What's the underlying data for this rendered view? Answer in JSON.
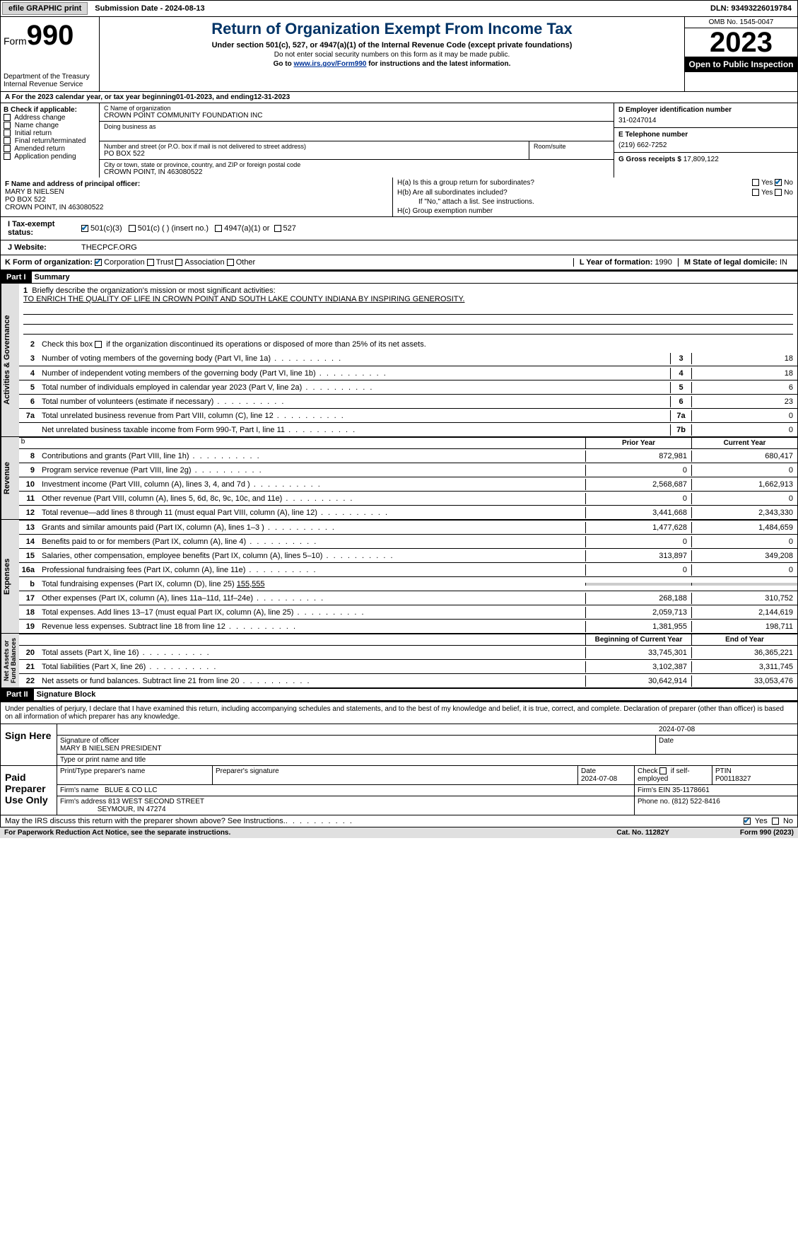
{
  "topbar": {
    "efile": "efile GRAPHIC print",
    "submission_label": "Submission Date - ",
    "submission_date": "2024-08-13",
    "dln_label": "DLN: ",
    "dln": "93493226019784"
  },
  "header": {
    "form_label": "Form",
    "form_no": "990",
    "dept": "Department of the Treasury\nInternal Revenue Service",
    "title": "Return of Organization Exempt From Income Tax",
    "subtitle": "Under section 501(c), 527, or 4947(a)(1) of the Internal Revenue Code (except private foundations)",
    "ssn_note": "Do not enter social security numbers on this form as it may be made public.",
    "goto_pre": "Go to ",
    "goto_link": "www.irs.gov/Form990",
    "goto_post": " for instructions and the latest information.",
    "omb": "OMB No. 1545-0047",
    "year": "2023",
    "open": "Open to Public Inspection"
  },
  "sectionA": {
    "text_pre": "A  For the 2023 calendar year, or tax year beginning ",
    "begin": "01-01-2023",
    "mid": "   , and ending ",
    "end": "12-31-2023"
  },
  "boxB": {
    "label": "B Check if applicable:",
    "items": [
      "Address change",
      "Name change",
      "Initial return",
      "Final return/terminated",
      "Amended return",
      "Application pending"
    ]
  },
  "boxC": {
    "name_label": "C Name of organization",
    "name": "CROWN POINT COMMUNITY FOUNDATION INC",
    "dba_label": "Doing business as",
    "dba": "",
    "street_label": "Number and street (or P.O. box if mail is not delivered to street address)",
    "street": "PO BOX 522",
    "room_label": "Room/suite",
    "city_label": "City or town, state or province, country, and ZIP or foreign postal code",
    "city": "CROWN POINT, IN  463080522"
  },
  "boxD": {
    "label": "D Employer identification number",
    "value": "31-0247014"
  },
  "boxE": {
    "label": "E Telephone number",
    "value": "(219) 662-7252"
  },
  "boxG": {
    "label": "G Gross receipts $ ",
    "value": "17,809,122"
  },
  "boxF": {
    "label": "F  Name and address of principal officer:",
    "name": "MARY B NIELSEN",
    "line2": "PO BOX 522",
    "line3": "CROWN POINT, IN  463080522"
  },
  "boxH": {
    "a": "H(a)  Is this a group return for subordinates?",
    "a_yes": "Yes",
    "a_no": "No",
    "b": "H(b)  Are all subordinates included?",
    "b_note": "If \"No,\" attach a list. See instructions.",
    "c": "H(c)  Group exemption number"
  },
  "status": {
    "i_label": "I   Tax-exempt status:",
    "opt1": "501(c)(3)",
    "opt2": "501(c) (  ) (insert no.)",
    "opt3": "4947(a)(1) or",
    "opt4": "527"
  },
  "website": {
    "label": "J   Website:",
    "value": "THECPCF.ORG"
  },
  "boxK": {
    "label": "K Form of organization:",
    "opts": [
      "Corporation",
      "Trust",
      "Association",
      "Other"
    ]
  },
  "boxL": {
    "label": "L Year of formation: ",
    "value": "1990"
  },
  "boxM": {
    "label": "M State of legal domicile: ",
    "value": "IN"
  },
  "part1": {
    "tag": "Part I",
    "title": "Summary"
  },
  "side_labels": {
    "gov": "Activities & Governance",
    "rev": "Revenue",
    "exp": "Expenses",
    "net": "Net Assets or\nFund Balances"
  },
  "mission": {
    "num": "1",
    "label": "Briefly describe the organization's mission or most significant activities:",
    "text": "TO ENRICH THE QUALITY OF LIFE IN CROWN POINT AND SOUTH LAKE COUNTY INDIANA BY INSPIRING GENEROSITY."
  },
  "line2": {
    "num": "2",
    "desc": "Check this box      if the organization discontinued its operations or disposed of more than 25% of its net assets."
  },
  "gov_lines": [
    {
      "num": "3",
      "desc": "Number of voting members of the governing body (Part VI, line 1a)",
      "box": "3",
      "val": "18"
    },
    {
      "num": "4",
      "desc": "Number of independent voting members of the governing body (Part VI, line 1b)",
      "box": "4",
      "val": "18"
    },
    {
      "num": "5",
      "desc": "Total number of individuals employed in calendar year 2023 (Part V, line 2a)",
      "box": "5",
      "val": "6"
    },
    {
      "num": "6",
      "desc": "Total number of volunteers (estimate if necessary)",
      "box": "6",
      "val": "23"
    },
    {
      "num": "7a",
      "desc": "Total unrelated business revenue from Part VIII, column (C), line 12",
      "box": "7a",
      "val": "0"
    },
    {
      "num": "",
      "desc": "Net unrelated business taxable income from Form 990-T, Part I, line 11",
      "box": "7b",
      "val": "0"
    }
  ],
  "col_headers": {
    "prior": "Prior Year",
    "current": "Current Year",
    "begin": "Beginning of Current Year",
    "end": "End of Year"
  },
  "rev_lines": [
    {
      "num": "8",
      "desc": "Contributions and grants (Part VIII, line 1h)",
      "prior": "872,981",
      "curr": "680,417"
    },
    {
      "num": "9",
      "desc": "Program service revenue (Part VIII, line 2g)",
      "prior": "0",
      "curr": "0"
    },
    {
      "num": "10",
      "desc": "Investment income (Part VIII, column (A), lines 3, 4, and 7d )",
      "prior": "2,568,687",
      "curr": "1,662,913"
    },
    {
      "num": "11",
      "desc": "Other revenue (Part VIII, column (A), lines 5, 6d, 8c, 9c, 10c, and 11e)",
      "prior": "0",
      "curr": "0"
    },
    {
      "num": "12",
      "desc": "Total revenue—add lines 8 through 11 (must equal Part VIII, column (A), line 12)",
      "prior": "3,441,668",
      "curr": "2,343,330"
    }
  ],
  "exp_lines": [
    {
      "num": "13",
      "desc": "Grants and similar amounts paid (Part IX, column (A), lines 1–3 )",
      "prior": "1,477,628",
      "curr": "1,484,659"
    },
    {
      "num": "14",
      "desc": "Benefits paid to or for members (Part IX, column (A), line 4)",
      "prior": "0",
      "curr": "0"
    },
    {
      "num": "15",
      "desc": "Salaries, other compensation, employee benefits (Part IX, column (A), lines 5–10)",
      "prior": "313,897",
      "curr": "349,208"
    },
    {
      "num": "16a",
      "desc": "Professional fundraising fees (Part IX, column (A), line 11e)",
      "prior": "0",
      "curr": "0"
    }
  ],
  "line_b": {
    "num": "b",
    "desc": "Total fundraising expenses (Part IX, column (D), line 25) ",
    "val": "155,555"
  },
  "exp_lines2": [
    {
      "num": "17",
      "desc": "Other expenses (Part IX, column (A), lines 11a–11d, 11f–24e)",
      "prior": "268,188",
      "curr": "310,752"
    },
    {
      "num": "18",
      "desc": "Total expenses. Add lines 13–17 (must equal Part IX, column (A), line 25)",
      "prior": "2,059,713",
      "curr": "2,144,619"
    },
    {
      "num": "19",
      "desc": "Revenue less expenses. Subtract line 18 from line 12",
      "prior": "1,381,955",
      "curr": "198,711"
    }
  ],
  "net_lines": [
    {
      "num": "20",
      "desc": "Total assets (Part X, line 16)",
      "prior": "33,745,301",
      "curr": "36,365,221"
    },
    {
      "num": "21",
      "desc": "Total liabilities (Part X, line 26)",
      "prior": "3,102,387",
      "curr": "3,311,745"
    },
    {
      "num": "22",
      "desc": "Net assets or fund balances. Subtract line 21 from line 20",
      "prior": "30,642,914",
      "curr": "33,053,476"
    }
  ],
  "part2": {
    "tag": "Part II",
    "title": "Signature Block"
  },
  "perjury": "Under penalties of perjury, I declare that I have examined this return, including accompanying schedules and statements, and to the best of my knowledge and belief, it is true, correct, and complete. Declaration of preparer (other than officer) is based on all information of which preparer has any knowledge.",
  "sign": {
    "here": "Sign Here",
    "date": "2024-07-08",
    "sig_label": "Signature of officer",
    "officer": "MARY B NIELSEN  PRESIDENT",
    "type_label": "Type or print name and title",
    "date_label": "Date"
  },
  "preparer": {
    "label": "Paid Preparer Use Only",
    "h1": "Print/Type preparer's name",
    "h2": "Preparer's signature",
    "h3": "Date",
    "h3v": "2024-07-08",
    "h4": "Check        if self-employed",
    "h5": "PTIN",
    "ptin": "P00118327",
    "firm_label": "Firm's name",
    "firm": "BLUE & CO LLC",
    "ein_label": "Firm's EIN",
    "ein": "35-1178661",
    "addr_label": "Firm's address",
    "addr1": "813 WEST SECOND STREET",
    "addr2": "SEYMOUR, IN  47274",
    "phone_label": "Phone no. ",
    "phone": "(812) 522-8416"
  },
  "discuss": {
    "text": "May the IRS discuss this return with the preparer shown above? See Instructions.",
    "yes": "Yes",
    "no": "No"
  },
  "footer": {
    "left": "For Paperwork Reduction Act Notice, see the separate instructions.",
    "mid": "Cat. No. 11282Y",
    "right": "Form 990 (2023)"
  }
}
